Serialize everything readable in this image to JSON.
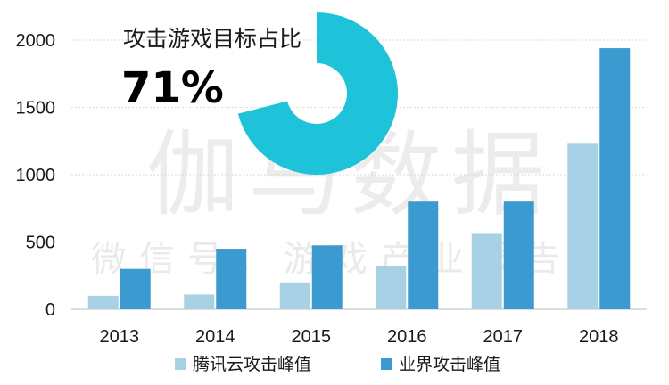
{
  "watermark": {
    "main": "伽马数据",
    "sub": "微信号：游戏产业报告"
  },
  "chart_data": {
    "type": "bar",
    "categories": [
      "2013",
      "2014",
      "2015",
      "2016",
      "2017",
      "2018"
    ],
    "series": [
      {
        "name": "腾讯云攻击峰值",
        "color": "#a8d1e6",
        "values": [
          100,
          110,
          200,
          320,
          560,
          1230
        ]
      },
      {
        "name": "业界攻击峰值",
        "color": "#3b9bd0",
        "values": [
          300,
          450,
          475,
          800,
          800,
          1940
        ]
      }
    ],
    "y_ticks": [
      "0",
      "500",
      "1000",
      "1500",
      "2000"
    ],
    "ylim": [
      0,
      2000
    ],
    "grid": true,
    "legend": "bottom",
    "inset": {
      "type": "donut",
      "title": "攻击游戏目标占比",
      "value_label": "71%",
      "value": 71,
      "color": "#1fc3d9"
    }
  }
}
